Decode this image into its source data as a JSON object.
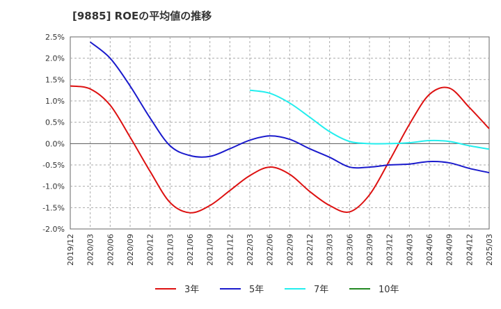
{
  "chart_data": {
    "type": "line",
    "title": "[9885]  ROEの平均値の推移",
    "xlabel": "",
    "ylabel": "",
    "ylim": [
      -2.0,
      2.5
    ],
    "y_ticks": [
      2.5,
      2.0,
      1.5,
      1.0,
      0.5,
      0.0,
      -0.5,
      -1.0,
      -1.5,
      -2.0
    ],
    "y_tick_labels": [
      "2.5%",
      "2.0%",
      "1.5%",
      "1.0%",
      "0.5%",
      "0.0%",
      "-0.5%",
      "-1.0%",
      "-1.5%",
      "-2.0%"
    ],
    "x_tick_labels": [
      "2019/12",
      "2020/03",
      "2020/06",
      "2020/09",
      "2020/12",
      "2021/03",
      "2021/06",
      "2021/09",
      "2021/12",
      "2022/03",
      "2022/06",
      "2022/09",
      "2022/12",
      "2023/03",
      "2023/06",
      "2023/09",
      "2023/12",
      "2024/03",
      "2024/06",
      "2024/09",
      "2024/12",
      "2025/03"
    ],
    "grid": true,
    "legend_position": "bottom",
    "series": [
      {
        "name": "3年",
        "color": "#dd1111",
        "values": [
          1.35,
          1.28,
          0.9,
          0.15,
          -0.65,
          -1.38,
          -1.62,
          -1.45,
          -1.1,
          -0.75,
          -0.55,
          -0.72,
          -1.12,
          -1.45,
          -1.6,
          -1.2,
          -0.4,
          0.45,
          1.15,
          1.3,
          0.85,
          0.35
        ]
      },
      {
        "name": "5年",
        "color": "#1a1acc",
        "values": [
          null,
          2.38,
          2.0,
          1.35,
          0.6,
          -0.05,
          -0.28,
          -0.3,
          -0.12,
          0.08,
          0.18,
          0.1,
          -0.12,
          -0.32,
          -0.55,
          -0.55,
          -0.5,
          -0.48,
          -0.42,
          -0.45,
          -0.58,
          -0.68
        ]
      },
      {
        "name": "7年",
        "color": "#22eeee",
        "values": [
          null,
          null,
          null,
          null,
          null,
          null,
          null,
          null,
          null,
          1.25,
          1.18,
          0.95,
          0.62,
          0.28,
          0.05,
          0.0,
          0.0,
          0.02,
          0.07,
          0.05,
          -0.05,
          -0.13
        ]
      },
      {
        "name": "10年",
        "color": "#228822",
        "values": []
      }
    ]
  }
}
